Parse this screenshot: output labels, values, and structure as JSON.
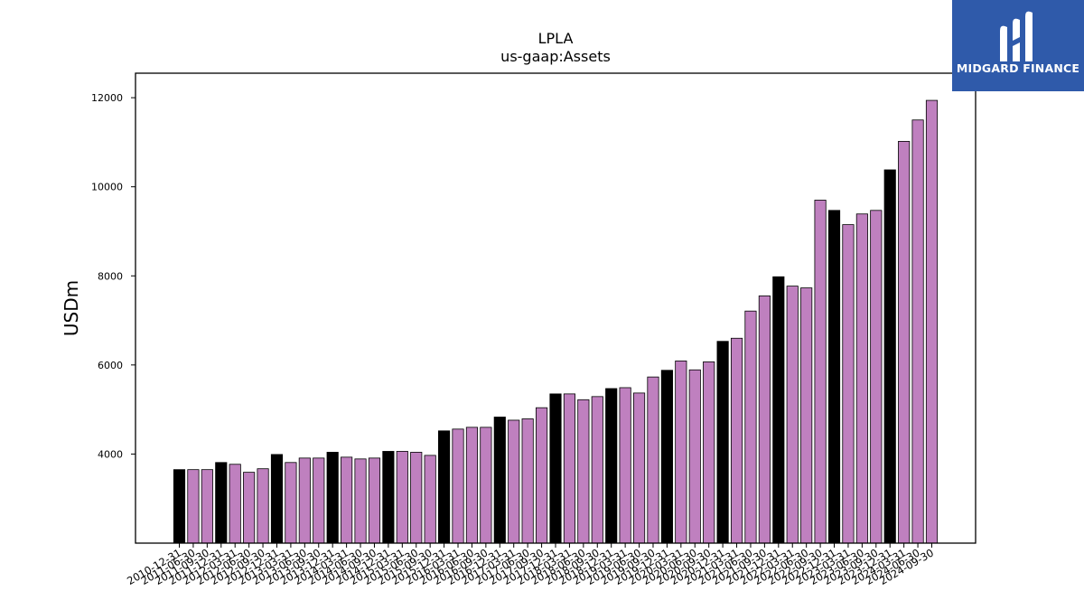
{
  "logo": {
    "text": "MIDGARD FINANCE",
    "icon": "midgard-logo-icon",
    "background": "#2f5aaa"
  },
  "chart_data": {
    "type": "bar",
    "title": "LPLA",
    "subtitle": "us-gaap:Assets",
    "xlabel": "",
    "ylabel": "USDm",
    "ylim": [
      2000,
      12550
    ],
    "yticks": [
      4000,
      6000,
      8000,
      10000,
      12000
    ],
    "grid": false,
    "colors": {
      "q4": "#000000",
      "other": "#bf80bf",
      "edge": "#000000"
    },
    "categories": [
      "2010-12-31",
      "2011-06-30",
      "2011-09-30",
      "2011-12-31",
      "2012-03-31",
      "2012-06-30",
      "2012-09-30",
      "2012-12-31",
      "2013-03-31",
      "2013-06-30",
      "2013-09-30",
      "2013-12-31",
      "2014-03-31",
      "2014-06-30",
      "2014-09-30",
      "2014-12-31",
      "2015-03-31",
      "2015-06-30",
      "2015-09-30",
      "2015-12-31",
      "2016-03-31",
      "2016-06-30",
      "2016-09-30",
      "2016-12-31",
      "2017-03-31",
      "2017-06-30",
      "2017-09-30",
      "2017-12-31",
      "2018-03-31",
      "2018-06-30",
      "2018-09-30",
      "2018-12-31",
      "2019-03-31",
      "2019-06-30",
      "2019-09-30",
      "2019-12-31",
      "2020-03-31",
      "2020-06-30",
      "2020-09-30",
      "2020-12-31",
      "2021-03-31",
      "2021-06-30",
      "2021-09-30",
      "2021-12-31",
      "2022-03-31",
      "2022-06-30",
      "2022-09-30",
      "2022-12-31",
      "2023-03-31",
      "2023-06-30",
      "2023-09-30",
      "2023-12-31",
      "2024-03-31",
      "2024-06-30",
      "2024-09-30"
    ],
    "values": [
      3650,
      3650,
      3650,
      3810,
      3770,
      3590,
      3670,
      3990,
      3810,
      3910,
      3910,
      4040,
      3930,
      3890,
      3910,
      4060,
      4060,
      4040,
      3970,
      4520,
      4560,
      4600,
      4600,
      4830,
      4760,
      4790,
      5040,
      5350,
      5350,
      5220,
      5290,
      5470,
      5490,
      5370,
      5730,
      5880,
      6090,
      5890,
      6070,
      6530,
      6600,
      7210,
      7550,
      7980,
      7770,
      7730,
      9700,
      9470,
      9150,
      9390,
      9470,
      10380,
      11020,
      11500,
      11940
    ]
  }
}
